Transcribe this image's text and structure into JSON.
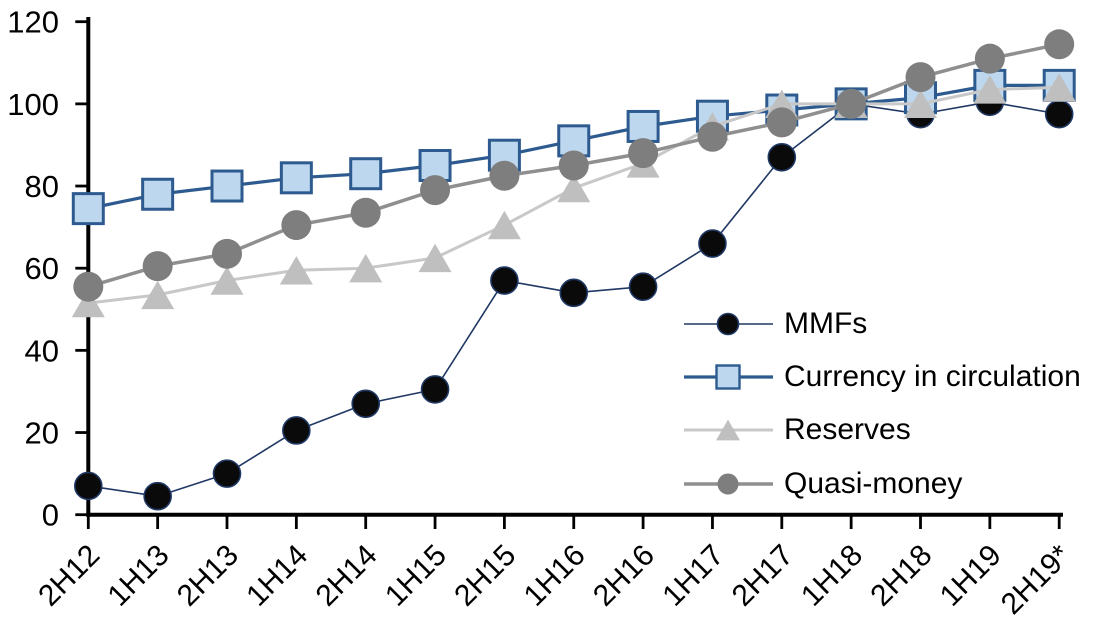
{
  "chart_data": {
    "type": "line",
    "title": "",
    "xlabel": "",
    "ylabel": "",
    "categories": [
      "2H12",
      "1H13",
      "2H13",
      "1H14",
      "2H14",
      "1H15",
      "2H15",
      "1H16",
      "2H16",
      "1H17",
      "2H17",
      "1H18",
      "2H18",
      "1H19",
      "2H19*"
    ],
    "series": [
      {
        "name": "MMFs",
        "marker": "circle",
        "values": [
          7,
          4.5,
          10,
          20.5,
          27,
          30.5,
          57,
          54,
          55.5,
          66,
          87,
          100,
          97.5,
          100.5,
          97.5
        ],
        "line_color": "#203864",
        "marker_fill": "#0a0a0a",
        "marker_stroke": "#1f3864"
      },
      {
        "name": "Currency in circulation",
        "marker": "square",
        "values": [
          74.5,
          78,
          80,
          82,
          83,
          85,
          87.5,
          91,
          94.5,
          97,
          98.5,
          100,
          101.5,
          104.5,
          104.5
        ],
        "line_color": "#2e5b8f",
        "marker_fill": "#bdd7ee",
        "marker_stroke": "#2e5b8f"
      },
      {
        "name": "Reserves",
        "marker": "triangle",
        "values": [
          51.5,
          53.5,
          57,
          59.5,
          60,
          62.5,
          70.5,
          79.5,
          85.5,
          94.5,
          100,
          100,
          100,
          103.5,
          104
        ],
        "line_color": "#c8c8c8",
        "marker_fill": "#bfbfbf",
        "marker_stroke": "none"
      },
      {
        "name": "Quasi-money",
        "marker": "circle",
        "values": [
          55.5,
          60.5,
          63.5,
          70.5,
          73.5,
          79,
          82.5,
          85,
          88,
          92,
          95.5,
          100,
          106.5,
          111,
          114.5
        ],
        "line_color": "#8f8f8f",
        "marker_fill": "#7e7e7e",
        "marker_stroke": "none"
      }
    ],
    "ylim": [
      0,
      120
    ],
    "ytick_interval": 20,
    "ytick_labels": [
      "0",
      "20",
      "40",
      "60",
      "80",
      "100",
      "120"
    ],
    "grid": "off",
    "legend_position": "inside-right",
    "axis_color": "#000000",
    "text_color": "#000000"
  }
}
